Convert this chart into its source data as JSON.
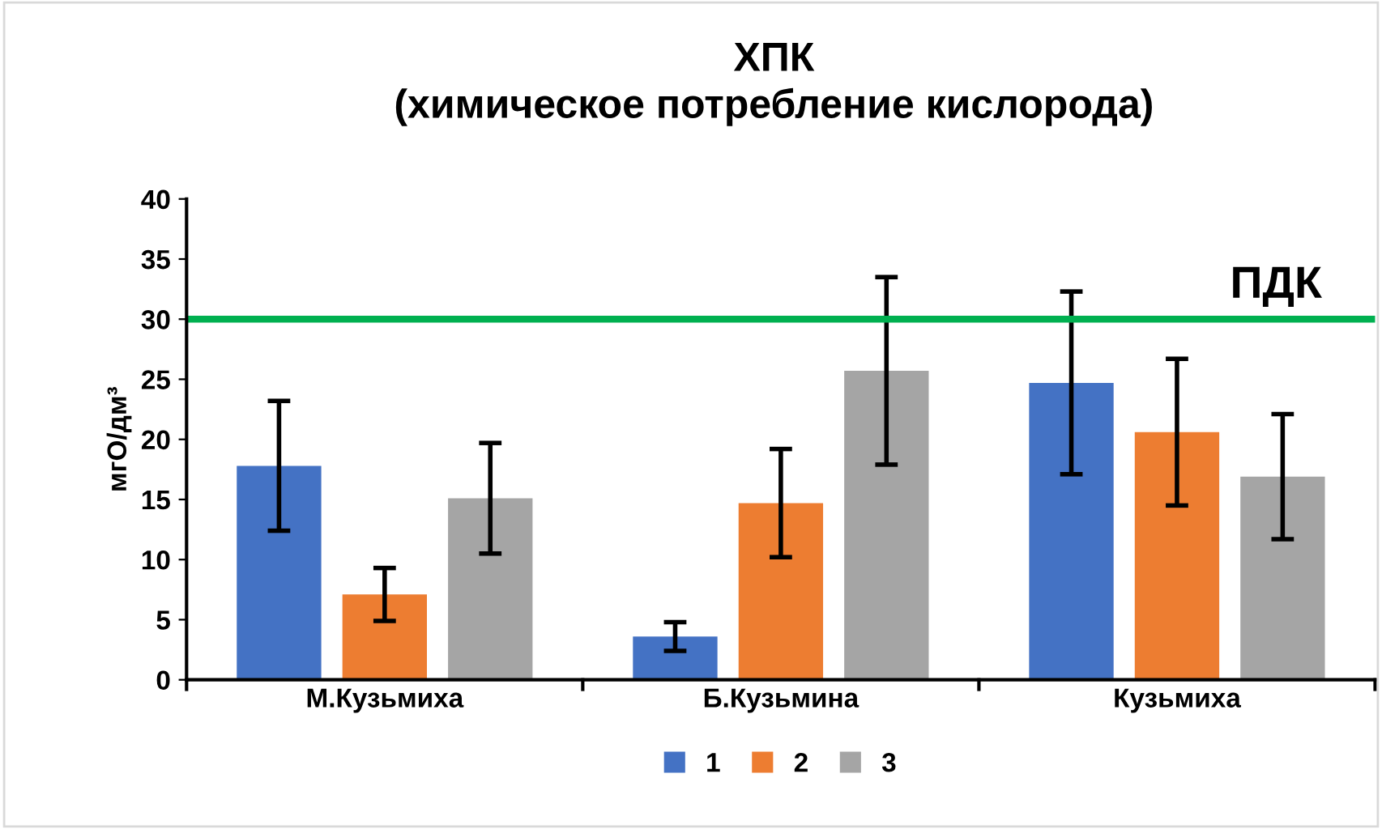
{
  "chart_data": {
    "type": "bar",
    "title": "ХПК\n(химическое потребление кислорода)",
    "ylabel": "мгО/дм³",
    "categories": [
      "М.Кузьмиха",
      "Б.Кузьмина",
      "Кузьмиха"
    ],
    "series": [
      {
        "name": "1",
        "color": "#4472c4",
        "values": [
          17.8,
          3.6,
          24.7
        ],
        "errors": [
          5.4,
          1.2,
          7.6
        ]
      },
      {
        "name": "2",
        "color": "#ed7d31",
        "values": [
          7.1,
          14.7,
          20.6
        ],
        "errors": [
          2.2,
          4.5,
          6.1
        ]
      },
      {
        "name": "3",
        "color": "#a5a5a5",
        "values": [
          15.1,
          25.7,
          16.9
        ],
        "errors": [
          4.6,
          7.8,
          5.2
        ]
      }
    ],
    "ylim": [
      0,
      40
    ],
    "yticks": [
      0,
      5,
      10,
      15,
      20,
      25,
      30,
      35,
      40
    ],
    "ref_lines": [
      {
        "axis": "y",
        "value": 30,
        "label": "ПДК",
        "color": "#00b050"
      }
    ],
    "grid": false,
    "legend": "bottom"
  }
}
